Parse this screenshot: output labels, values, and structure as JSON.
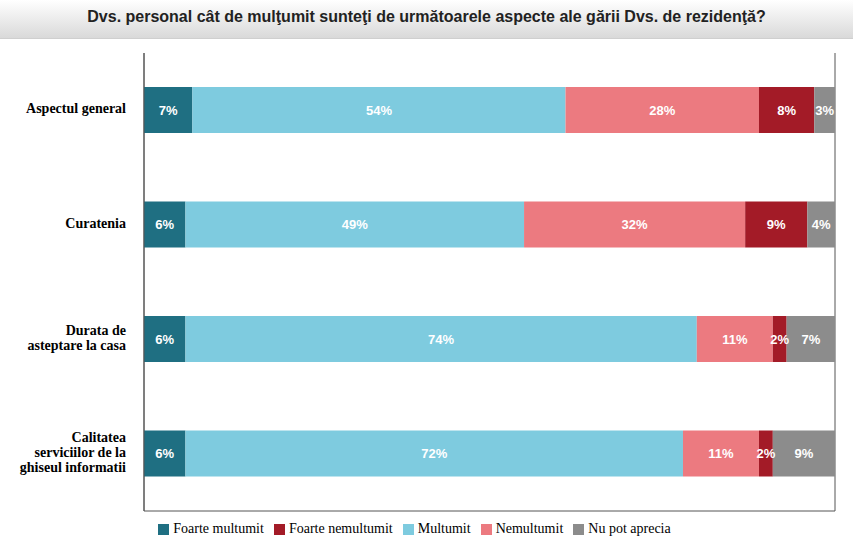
{
  "chart_data": {
    "type": "bar",
    "title": "Dvs. personal cât de mulţumit sunteţi de următoarele aspecte ale gării Dvs. de rezidenţă?",
    "orientation": "horizontal",
    "stacked": true,
    "grid": true,
    "legend": "bottom",
    "data_labels": true,
    "tick_labels": "y",
    "categories": [
      "Aspectul general",
      "Curatenia",
      "Durata de asteptare la casa",
      "Calitatea serviciilor de la ghiseul informatii"
    ],
    "xlim": [
      0,
      100
    ],
    "xticks": [
      0,
      20,
      40,
      60,
      80,
      100
    ],
    "series": [
      {
        "name": "Foarte multumit",
        "color": "#1f6f82",
        "values": [
          7,
          6,
          6,
          6
        ],
        "value_labels": [
          "7%",
          "6%",
          "6%",
          "6%"
        ]
      },
      {
        "name": "Multumit",
        "color": "#7ecbdf",
        "values": [
          54,
          49,
          74,
          72
        ],
        "value_labels": [
          "54%",
          "49%",
          "74%",
          "72%"
        ]
      },
      {
        "name": "Nemultumit",
        "color": "#ec7a80",
        "values": [
          28,
          32,
          11,
          11
        ],
        "value_labels": [
          "28%",
          "32%",
          "11%",
          "11%"
        ]
      },
      {
        "name": "Foarte nemultumit",
        "color": "#a31b27",
        "values": [
          8,
          9,
          2,
          2
        ],
        "value_labels": [
          "8%",
          "9%",
          "2%",
          "2%"
        ]
      },
      {
        "name": "Nu pot aprecia",
        "color": "#8c8c8c",
        "values": [
          3,
          4,
          7,
          9
        ],
        "value_labels": [
          "3%",
          "4%",
          "7%",
          "9%"
        ]
      }
    ]
  }
}
